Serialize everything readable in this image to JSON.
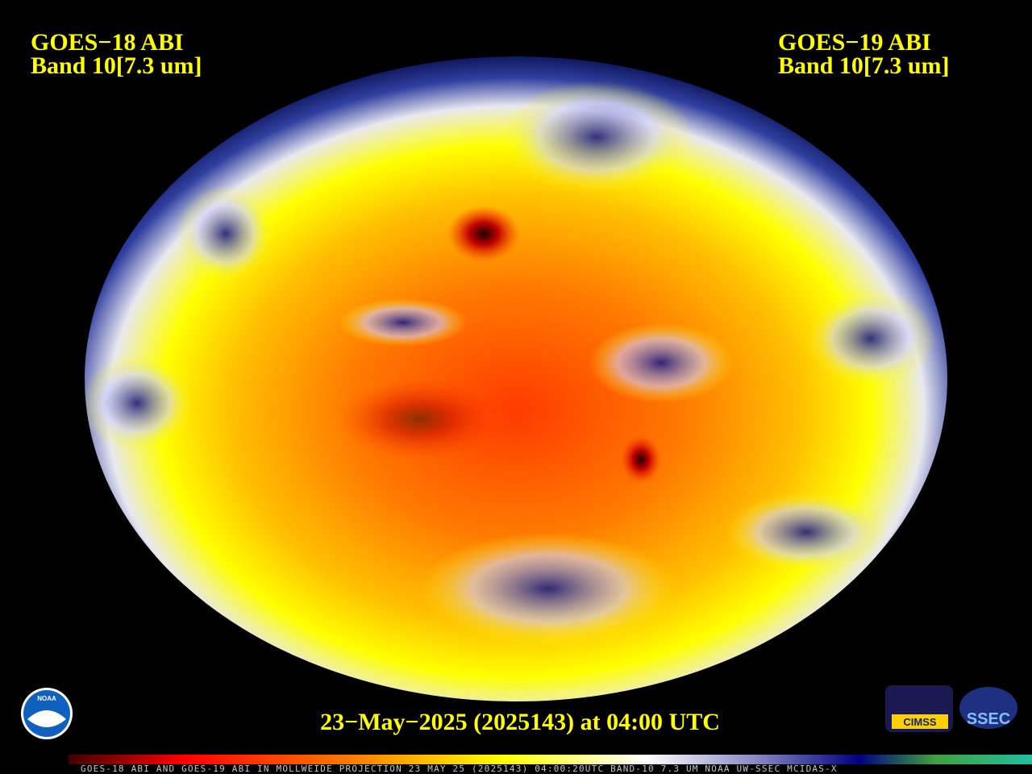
{
  "header": {
    "left": [
      "GOES−18 ABI",
      "Band 10[7.3 um]"
    ],
    "right": [
      "GOES−19 ABI",
      "Band 10[7.3 um]"
    ]
  },
  "footer": {
    "timestamp": "23−May−2025 (2025143) at 04:00 UTC",
    "colorbar_caption": "GOES-18 ABI AND GOES-19 ABI IN MOLLWEIDE PROJECTION 23 MAY 25 (2025143) 04:00:20UTC BAND-10 7.3 UM NOAA UW-SSEC MCIDAS-X"
  },
  "logos": [
    "NOAA",
    "CIMSS",
    "SSEC"
  ]
}
